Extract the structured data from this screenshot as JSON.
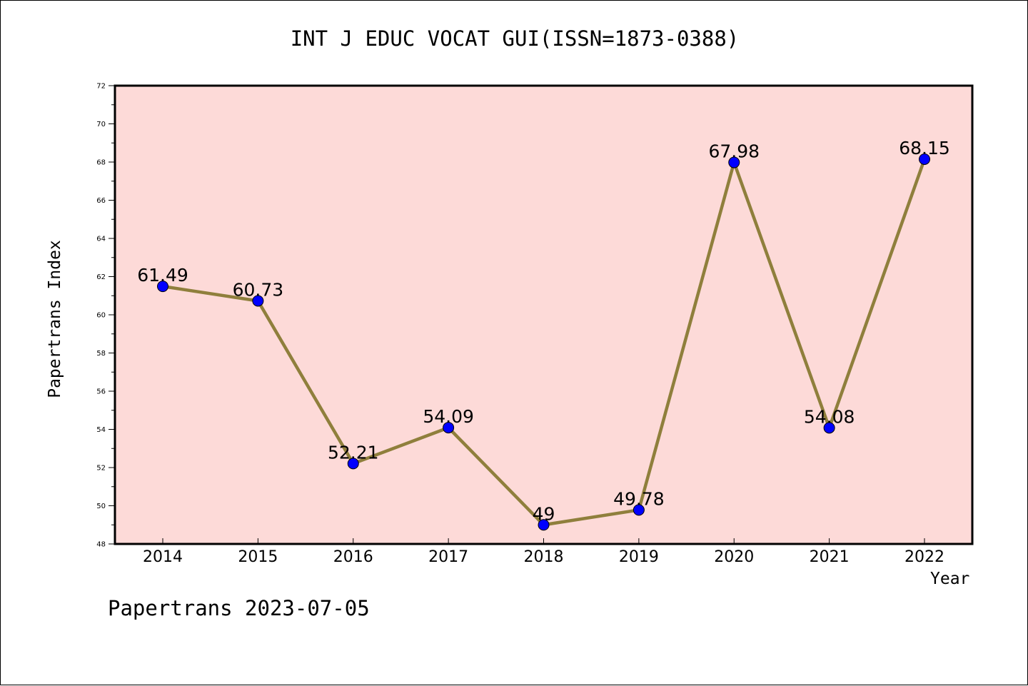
{
  "chart_data": {
    "type": "line",
    "title": "INT J EDUC VOCAT GUI(ISSN=1873-0388)",
    "xlabel": "Year",
    "ylabel": "Papertrans Index",
    "footer": "Papertrans 2023-07-05",
    "categories": [
      "2014",
      "2015",
      "2016",
      "2017",
      "2018",
      "2019",
      "2020",
      "2021",
      "2022"
    ],
    "series": [
      {
        "values": [
          61.49,
          60.73,
          52.21,
          54.09,
          49,
          49.78,
          67.98,
          54.08,
          68.15
        ],
        "labels": [
          "61.49",
          "60.73",
          "52.21",
          "54.09",
          "49",
          "49.78",
          "67.98",
          "54.08",
          "68.15"
        ]
      }
    ],
    "ylim": [
      48,
      72
    ],
    "yticks": [
      "48",
      "50",
      "52",
      "54",
      "56",
      "58",
      "60",
      "62",
      "64",
      "66",
      "68",
      "70",
      "72"
    ],
    "grid": false,
    "colors": {
      "plot_background": "#fddad8",
      "line": "#8f7f3c",
      "marker": "#0000ff"
    }
  }
}
